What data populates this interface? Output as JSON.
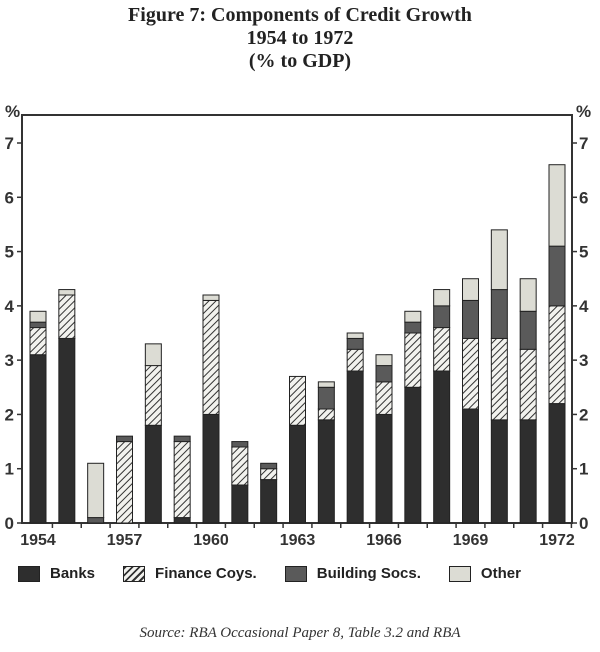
{
  "chart_data": {
    "type": "bar",
    "stacked": true,
    "title": "Figure 7: Components of Credit Growth",
    "subtitle": "1954 to 1972",
    "subtitle2": "(% to GDP)",
    "ylabel": "%",
    "ylim": [
      0,
      7.5
    ],
    "yticks": [
      0,
      1,
      2,
      3,
      4,
      5,
      6,
      7
    ],
    "categories": [
      "1954",
      "1955",
      "1956",
      "1957",
      "1958",
      "1959",
      "1960",
      "1961",
      "1962",
      "1963",
      "1964",
      "1965",
      "1966",
      "1967",
      "1968",
      "1969",
      "1970",
      "1971",
      "1972"
    ],
    "xtick_labels": [
      "1954",
      "1957",
      "1960",
      "1963",
      "1966",
      "1969",
      "1972"
    ],
    "series": [
      {
        "name": "Banks",
        "color": "#2e2e2e",
        "values": [
          3.1,
          3.4,
          0,
          0,
          1.8,
          0.1,
          2.0,
          0.7,
          0.8,
          1.8,
          1.9,
          2.8,
          2.0,
          2.5,
          2.8,
          2.1,
          1.9,
          1.9,
          2.2
        ]
      },
      {
        "name": "Finance Coys.",
        "color": "hatch",
        "values": [
          0.5,
          0.8,
          0,
          1.5,
          1.1,
          1.4,
          2.1,
          0.7,
          0.2,
          0.9,
          0.2,
          0.4,
          0.6,
          1.0,
          0.8,
          1.3,
          1.5,
          1.3,
          1.8
        ]
      },
      {
        "name": "Building Socs.",
        "color": "#5a5a5a",
        "values": [
          0.1,
          0.0,
          0.1,
          0.1,
          0,
          0.1,
          0,
          0.1,
          0.1,
          0,
          0.4,
          0.2,
          0.3,
          0.2,
          0.4,
          0.7,
          0.9,
          0.7,
          1.1
        ]
      },
      {
        "name": "Other",
        "color": "#dcdcd4",
        "values": [
          0.2,
          0.1,
          1.0,
          0,
          0.4,
          0,
          0.1,
          0,
          0,
          0,
          0.1,
          0.1,
          0.2,
          0.2,
          0.3,
          0.4,
          1.1,
          0.6,
          1.5
        ]
      }
    ],
    "legend_position": "bottom",
    "source": "Source: RBA Occasional Paper 8, Table 3.2 and RBA"
  }
}
